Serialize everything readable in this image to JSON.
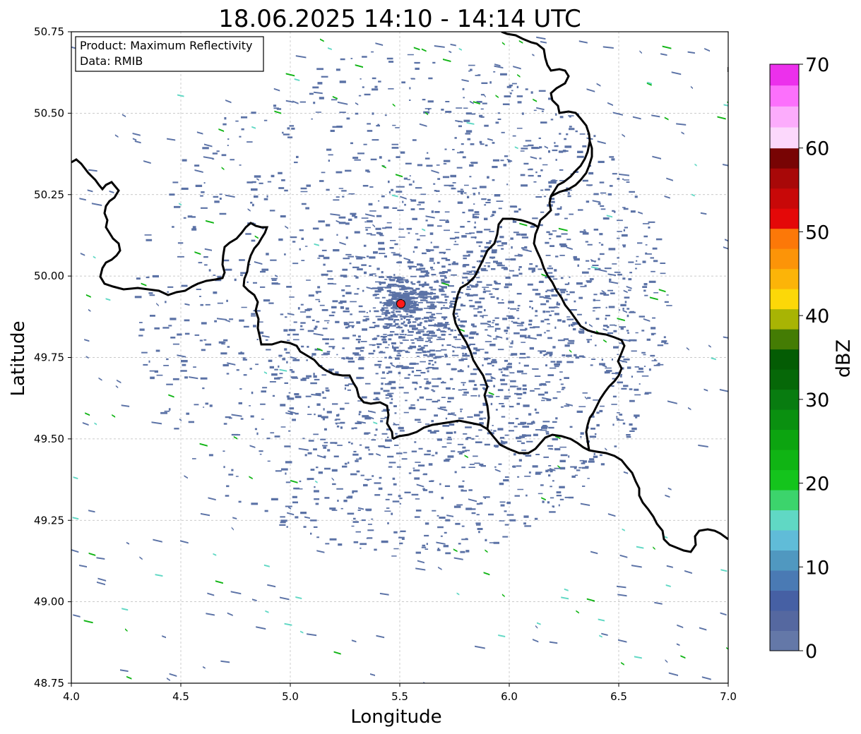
{
  "title": "18.06.2025 14:10 - 14:14 UTC",
  "xlabel": "Longitude",
  "ylabel": "Latitude",
  "info_box": {
    "product": "Product: Maximum Reflectivity",
    "data": "Data: RMIB"
  },
  "axes": {
    "xlim": [
      4.0,
      7.0
    ],
    "ylim": [
      48.75,
      50.75
    ],
    "xticks": [
      "4.0",
      "4.5",
      "5.0",
      "5.5",
      "6.0",
      "6.5",
      "7.0"
    ],
    "yticks": [
      "48.75",
      "49.00",
      "49.25",
      "49.50",
      "49.75",
      "50.00",
      "50.25",
      "50.50",
      "50.75"
    ],
    "grid": true
  },
  "radar_site": {
    "lon": 5.505,
    "lat": 49.915,
    "color": "#ff1a1a"
  },
  "colorbar": {
    "label": "dBZ",
    "range": [
      0,
      70
    ],
    "ticks": [
      "0",
      "10",
      "20",
      "30",
      "40",
      "50",
      "60",
      "70"
    ],
    "colors": [
      "#6478a8",
      "#5568a0",
      "#4660a4",
      "#4a7ab4",
      "#5098c0",
      "#60bcd8",
      "#60d8c4",
      "#3cd46c",
      "#14c41c",
      "#10b414",
      "#0ca410",
      "#0a9010",
      "#087c10",
      "#066808",
      "#045c04",
      "#447c04",
      "#a8b404",
      "#fcd808",
      "#fcb408",
      "#fc9408",
      "#fc7808",
      "#e40808",
      "#c80808",
      "#a80808",
      "#780404",
      "#fcd8fc",
      "#fcacfc",
      "#fc70fc",
      "#ec30ec"
    ]
  },
  "border_color": "#000000",
  "echo_color": "#5b72a6"
}
